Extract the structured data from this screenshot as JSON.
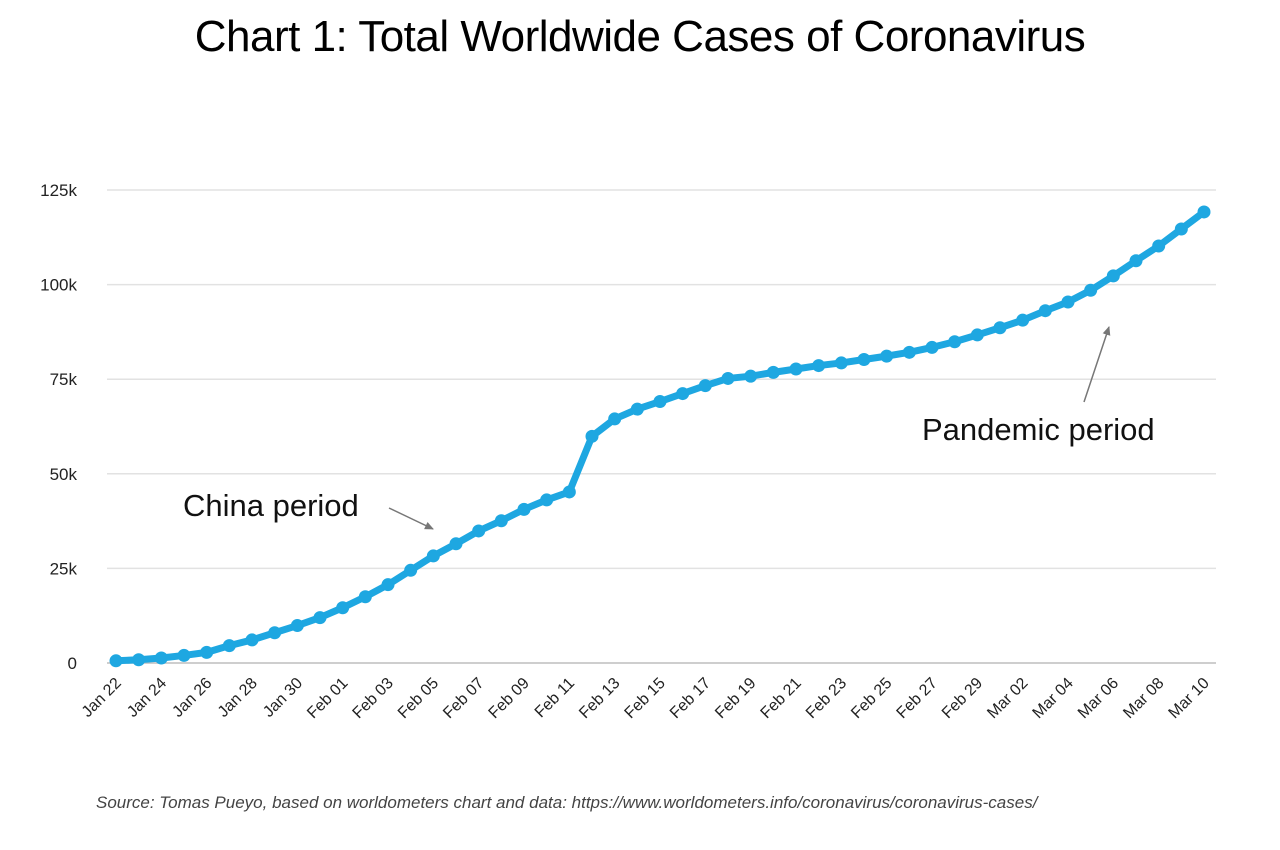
{
  "chart_data": {
    "type": "line",
    "title": "Chart 1: Total Worldwide Cases of Coronavirus",
    "xlabel": "",
    "ylabel": "",
    "ylim": [
      0,
      125000
    ],
    "yticks": [
      0,
      25000,
      50000,
      75000,
      100000,
      125000
    ],
    "ytick_labels": [
      "0",
      "25k",
      "50k",
      "75k",
      "100k",
      "125k"
    ],
    "grid": true,
    "line_color": "#1EA7E1",
    "x": [
      "Jan 22",
      "Jan 23",
      "Jan 24",
      "Jan 25",
      "Jan 26",
      "Jan 27",
      "Jan 28",
      "Jan 29",
      "Jan 30",
      "Jan 31",
      "Feb 01",
      "Feb 02",
      "Feb 03",
      "Feb 04",
      "Feb 05",
      "Feb 06",
      "Feb 07",
      "Feb 08",
      "Feb 09",
      "Feb 10",
      "Feb 11",
      "Feb 12",
      "Feb 13",
      "Feb 14",
      "Feb 15",
      "Feb 16",
      "Feb 17",
      "Feb 18",
      "Feb 19",
      "Feb 20",
      "Feb 21",
      "Feb 22",
      "Feb 23",
      "Feb 24",
      "Feb 25",
      "Feb 26",
      "Feb 27",
      "Feb 28",
      "Feb 29",
      "Mar 01",
      "Mar 02",
      "Mar 03",
      "Mar 04",
      "Mar 05",
      "Mar 06",
      "Mar 07",
      "Mar 08",
      "Mar 09",
      "Mar 10"
    ],
    "xtick_labels": [
      "Jan 22",
      "Jan 24",
      "Jan 26",
      "Jan 28",
      "Jan 30",
      "Feb 01",
      "Feb 03",
      "Feb 05",
      "Feb 07",
      "Feb 09",
      "Feb 11",
      "Feb 13",
      "Feb 15",
      "Feb 17",
      "Feb 19",
      "Feb 21",
      "Feb 23",
      "Feb 25",
      "Feb 27",
      "Feb 29",
      "Mar 02",
      "Mar 04",
      "Mar 06",
      "Mar 08",
      "Mar 10"
    ],
    "series": [
      {
        "values": [
          580,
          850,
          1320,
          2000,
          2800,
          4600,
          6100,
          8000,
          9900,
          12000,
          14600,
          17500,
          20700,
          24500,
          28300,
          31500,
          34900,
          37600,
          40600,
          43100,
          45200,
          59900,
          64500,
          67100,
          69100,
          71200,
          73300,
          75200,
          75800,
          76800,
          77700,
          78600,
          79300,
          80200,
          81100,
          82100,
          83400,
          84900,
          86700,
          88600,
          90600,
          93100,
          95400,
          98500,
          102300,
          106300,
          110200,
          114700,
          119200
        ]
      }
    ],
    "annotations": [
      {
        "text": "China period",
        "points_to": "Feb 05"
      },
      {
        "text": "Pandemic period",
        "points_to": "Mar 05"
      }
    ]
  },
  "source": "Source: Tomas Pueyo, based on worldometers chart and data: https://www.worldometers.info/coronavirus/coronavirus-cases/"
}
